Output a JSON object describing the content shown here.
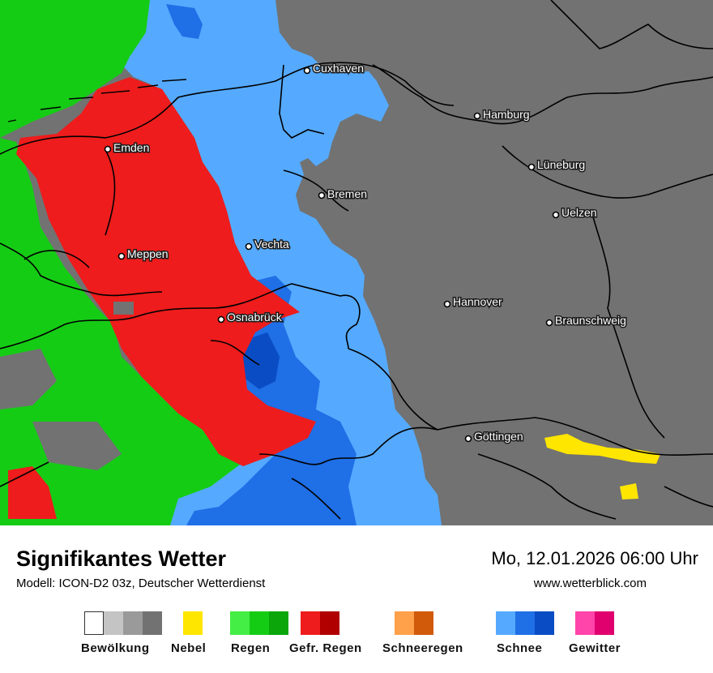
{
  "map": {
    "cities": [
      {
        "name": "Cuxhaven"
      },
      {
        "name": "Hamburg"
      },
      {
        "name": "Emden"
      },
      {
        "name": "Lüneburg"
      },
      {
        "name": "Bremen"
      },
      {
        "name": "Uelzen"
      },
      {
        "name": "Vechta"
      },
      {
        "name": "Meppen"
      },
      {
        "name": "Hannover"
      },
      {
        "name": "Osnabrück"
      },
      {
        "name": "Braunschweig"
      },
      {
        "name": "Göttingen"
      }
    ]
  },
  "header": {
    "title": "Signifikantes Wetter",
    "model": "Modell: ICON-D2 03z, Deutscher Wetterdienst",
    "datetime": "Mo, 12.01.2026 06:00 Uhr",
    "website": "www.wetterblick.com"
  },
  "legend": [
    {
      "label": "Bewölkung",
      "colors": [
        "#ffffff",
        "#c4c4c4",
        "#9a9a9a",
        "#727272"
      ]
    },
    {
      "label": "Nebel",
      "colors": [
        "#ffe600"
      ]
    },
    {
      "label": "Regen",
      "colors": [
        "#44ee44",
        "#15cc15",
        "#0aa60a"
      ]
    },
    {
      "label": "Gefr. Regen",
      "colors": [
        "#ee1c1c",
        "#b00000"
      ]
    },
    {
      "label": "Schneeregen",
      "colors": [
        "#ffa04a",
        "#d05a0a"
      ]
    },
    {
      "label": "Schnee",
      "colors": [
        "#55aaff",
        "#1f6fe6",
        "#0a4cc4"
      ]
    },
    {
      "label": "Gewitter",
      "colors": [
        "#ff44aa",
        "#e0006e"
      ]
    }
  ]
}
